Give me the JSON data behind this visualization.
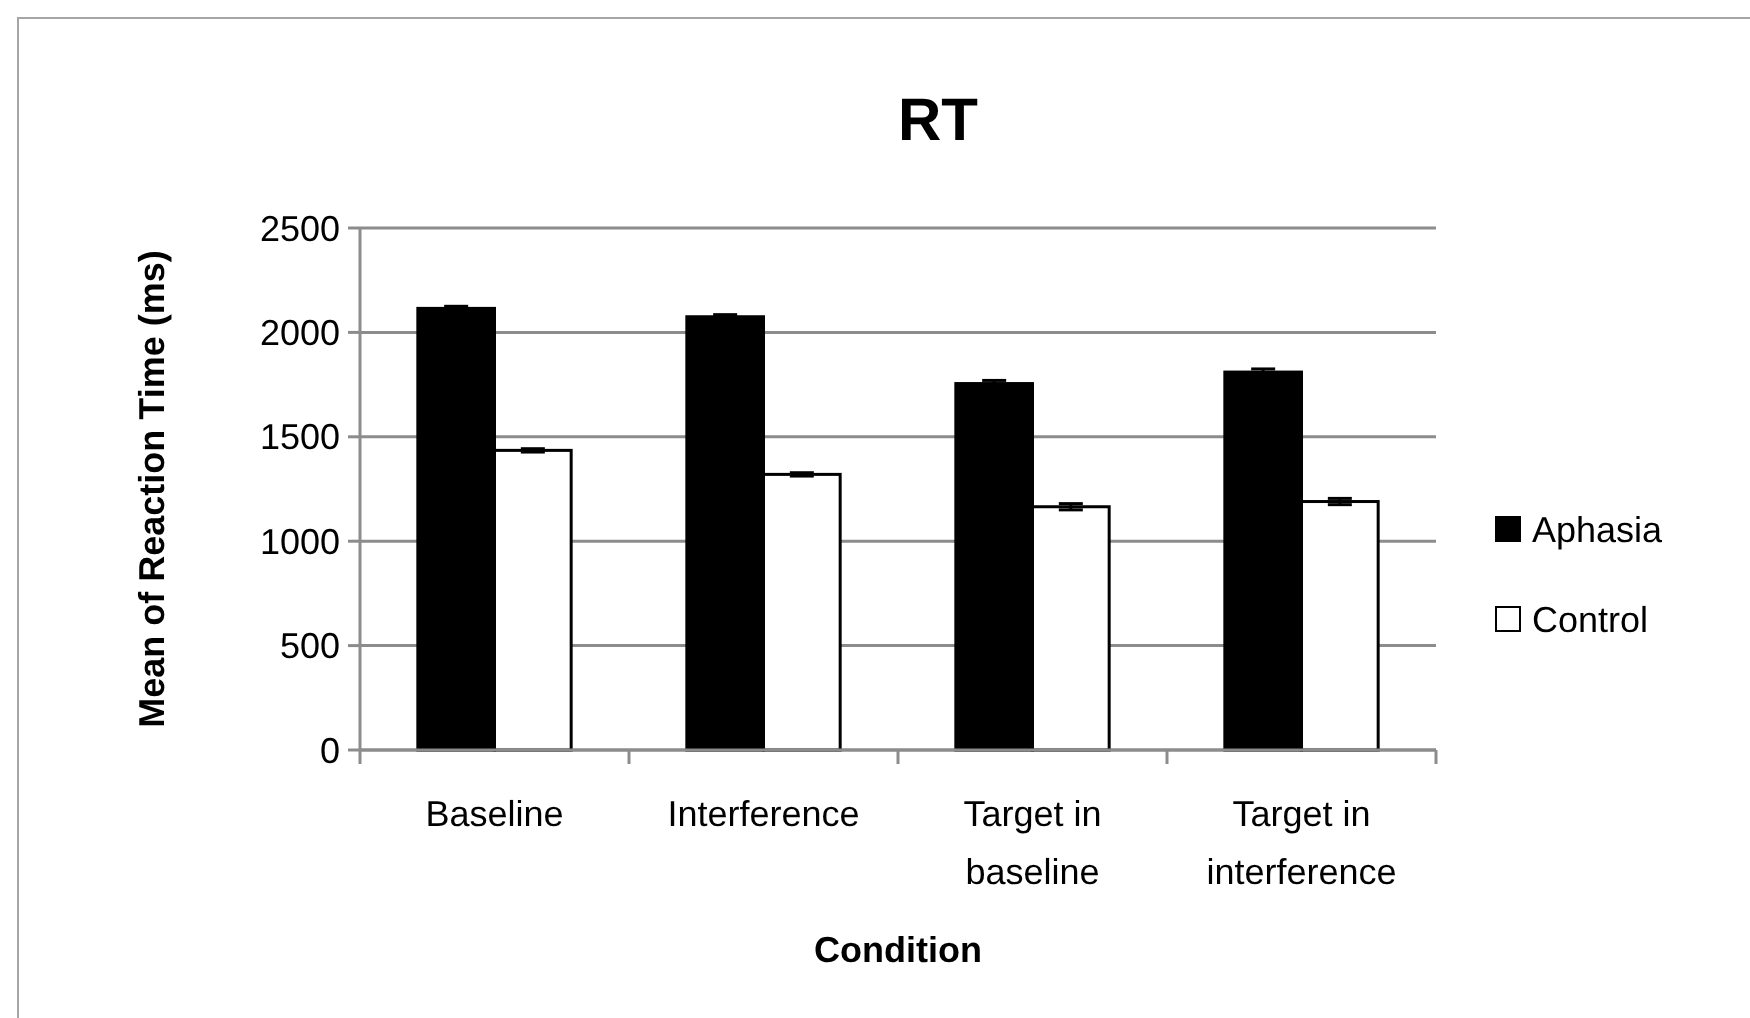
{
  "chart_data": {
    "type": "bar",
    "title": "RT",
    "xlabel": "Condition",
    "ylabel": "Mean of Reaction Time (ms)",
    "categories": [
      "Baseline",
      "Interference",
      "Target in baseline",
      "Target in interference"
    ],
    "series": [
      {
        "name": "Aphasia",
        "color": "#000000",
        "values": [
          2115,
          2075,
          1755,
          1810
        ],
        "errors": [
          10,
          10,
          15,
          15
        ]
      },
      {
        "name": "Control",
        "color": "#ffffff",
        "values": [
          1435,
          1320,
          1165,
          1190
        ],
        "errors": [
          8,
          8,
          15,
          15
        ]
      }
    ],
    "ylim": [
      0,
      2500
    ],
    "yticks": [
      0,
      500,
      1000,
      1500,
      2000,
      2500
    ],
    "grid": "y",
    "legend": "right"
  }
}
